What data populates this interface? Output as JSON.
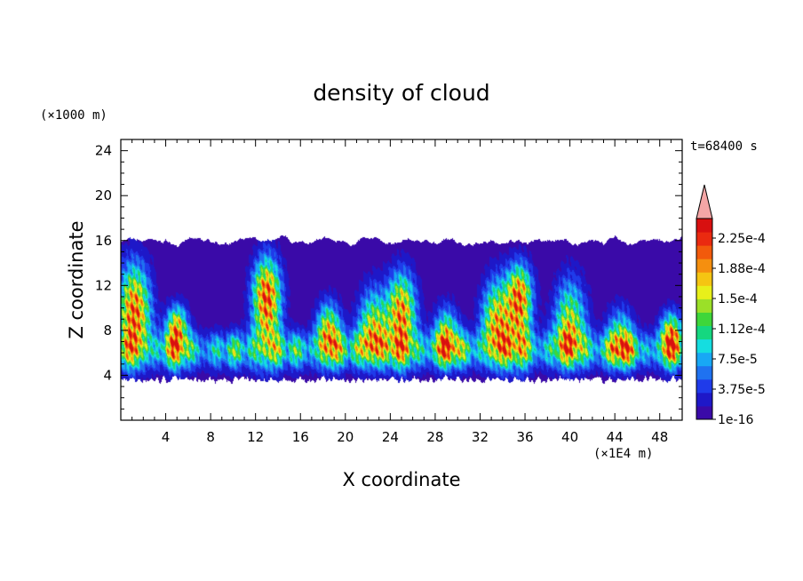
{
  "chart_data": {
    "type": "heatmap",
    "title": "density of cloud",
    "xlabel": "X coordinate",
    "ylabel": "Z coordinate",
    "x_unit": "(×1E4 m)",
    "y_unit": "(×1000 m)",
    "time_label": "t=68400 s",
    "xlim": [
      0,
      50
    ],
    "ylim": [
      0,
      25
    ],
    "x_ticks": [
      4,
      8,
      12,
      16,
      20,
      24,
      28,
      32,
      36,
      40,
      44,
      48
    ],
    "x_tick_labels": [
      "4",
      "8",
      "12",
      "16",
      "20",
      "24",
      "28",
      "32",
      "36",
      "40",
      "44",
      "48"
    ],
    "y_ticks": [
      4,
      8,
      12,
      16,
      20,
      24
    ],
    "y_tick_labels": [
      "4",
      "8",
      "12",
      "16",
      "20",
      "24"
    ],
    "field": {
      "cloud_base": 3.6,
      "cloud_top": 16.2,
      "cores": [
        {
          "x": 1.2,
          "z": 9.5,
          "top": 15.5,
          "peak": 0.00024
        },
        {
          "x": 5.0,
          "z": 8.2,
          "top": 11.0,
          "peak": 0.0002
        },
        {
          "x": 13.0,
          "z": 11.0,
          "top": 15.8,
          "peak": 0.00025
        },
        {
          "x": 18.5,
          "z": 7.8,
          "top": 11.5,
          "peak": 0.00019
        },
        {
          "x": 22.5,
          "z": 7.5,
          "top": 13.0,
          "peak": 0.00019
        },
        {
          "x": 25.0,
          "z": 9.5,
          "top": 14.5,
          "peak": 0.00022
        },
        {
          "x": 29.0,
          "z": 7.0,
          "top": 11.0,
          "peak": 0.00018
        },
        {
          "x": 33.5,
          "z": 8.5,
          "top": 14.0,
          "peak": 0.0002
        },
        {
          "x": 35.5,
          "z": 11.0,
          "top": 15.0,
          "peak": 0.00023
        },
        {
          "x": 40.0,
          "z": 8.0,
          "top": 14.0,
          "peak": 0.00018
        },
        {
          "x": 44.5,
          "z": 6.5,
          "top": 11.0,
          "peak": 0.00016
        },
        {
          "x": 49.0,
          "z": 7.5,
          "top": 10.5,
          "peak": 0.00019
        }
      ]
    },
    "colorbar": {
      "labels": [
        "2.25e-4",
        "1.88e-4",
        "1.5e-4",
        "1.12e-4",
        "7.5e-5",
        "3.75e-5",
        "1e-16"
      ],
      "colors": [
        "#3a0aa8",
        "#1e18c8",
        "#1f3bea",
        "#1f72f0",
        "#18a8f5",
        "#15dde0",
        "#15d780",
        "#3ed63a",
        "#9be028",
        "#e8f01a",
        "#f5c512",
        "#f58f0f",
        "#f25a0c",
        "#ea2a10",
        "#d81010"
      ],
      "extend_color": "#f4a6a6"
    }
  }
}
